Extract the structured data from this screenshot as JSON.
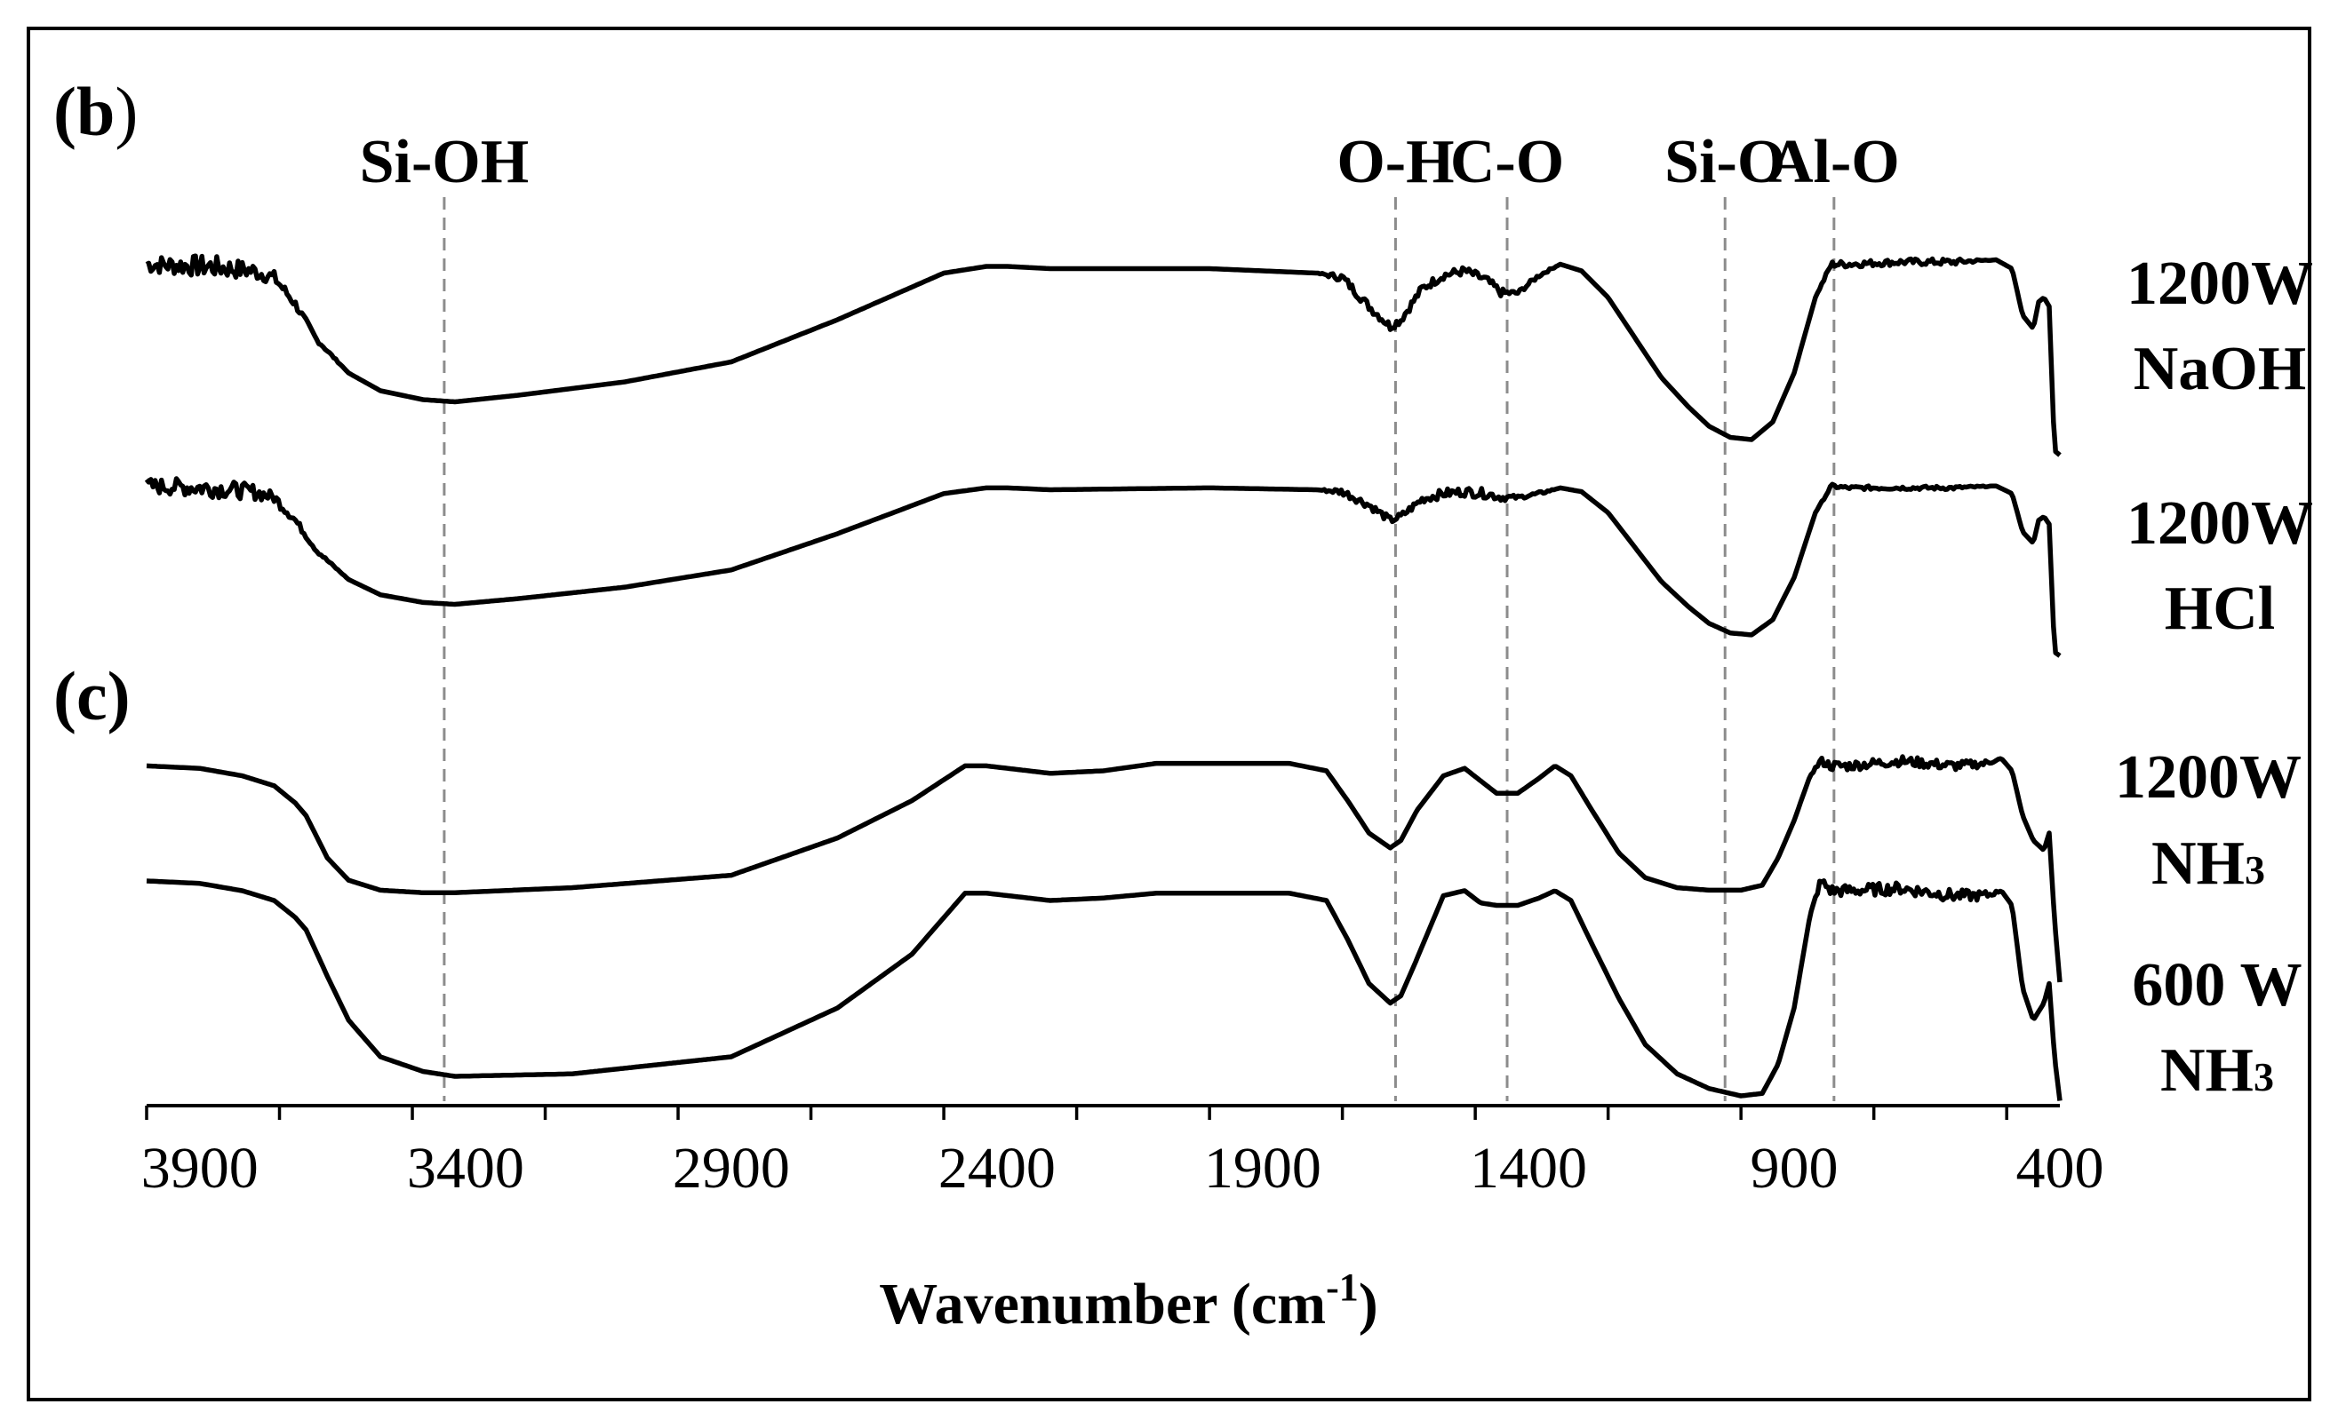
{
  "chart_data": {
    "type": "line",
    "title": "",
    "xlabel": "Wavenumber (cm-1)",
    "xlabel_main": "Wavenumber (cm",
    "xlabel_sup": "-1",
    "xlabel_close": ")",
    "ylabel": "",
    "xlim": [
      4000,
      400
    ],
    "x_reversed": true,
    "x_ticks": [
      3900,
      3400,
      2900,
      2400,
      1900,
      1400,
      900,
      400
    ],
    "x_tick_labels": [
      "3900",
      "3400",
      "2900",
      "2400",
      "1900",
      "1400",
      "900",
      "400"
    ],
    "panels": [
      {
        "label": "(b)",
        "label_main": "(b",
        "label_close": ")"
      },
      {
        "label": "(c)"
      }
    ],
    "bands": [
      {
        "label": "Si-OH",
        "x": 3440
      },
      {
        "label": "O-H",
        "x": 1650
      },
      {
        "label": "C-O",
        "x": 1440
      },
      {
        "label": "Si-O",
        "x": 1030
      },
      {
        "label": "Al-O",
        "x": 825
      }
    ],
    "series": [
      {
        "name": "1200W NaOH",
        "label_lines": [
          "1200W",
          "NaOH"
        ],
        "x": [
          4000,
          3880,
          3800,
          3760,
          3720,
          3680,
          3620,
          3560,
          3480,
          3420,
          3300,
          3100,
          2900,
          2700,
          2500,
          2420,
          2380,
          2300,
          2000,
          1800,
          1750,
          1700,
          1660,
          1640,
          1600,
          1560,
          1520,
          1480,
          1450,
          1420,
          1380,
          1340,
          1300,
          1250,
          1200,
          1150,
          1100,
          1060,
          1020,
          980,
          940,
          900,
          860,
          830,
          800,
          700,
          600,
          520,
          490,
          470,
          450,
          440,
          430,
          420,
          410,
          400
        ],
        "y": [
          0.89,
          0.88,
          0.86,
          0.83,
          0.71,
          0.55,
          0.4,
          0.32,
          0.28,
          0.27,
          0.3,
          0.36,
          0.45,
          0.64,
          0.85,
          0.88,
          0.88,
          0.87,
          0.87,
          0.85,
          0.83,
          0.7,
          0.61,
          0.64,
          0.78,
          0.84,
          0.86,
          0.82,
          0.76,
          0.76,
          0.84,
          0.89,
          0.86,
          0.74,
          0.56,
          0.38,
          0.25,
          0.16,
          0.11,
          0.1,
          0.18,
          0.4,
          0.74,
          0.89,
          0.89,
          0.9,
          0.9,
          0.91,
          0.87,
          0.66,
          0.6,
          0.72,
          0.74,
          0.7,
          0.05,
          0.03
        ],
        "noise": [
          0.04,
          0.05,
          0.04,
          0.03,
          0.02,
          0.01,
          0.0,
          0.0,
          0.0,
          0.0,
          0.0,
          0.0,
          0.0,
          0.0,
          0.0,
          0.0,
          0.0,
          0.0,
          0.0,
          0.0,
          0.02,
          0.02,
          0.02,
          0.02,
          0.02,
          0.02,
          0.02,
          0.02,
          0.02,
          0.01,
          0.01,
          0.0,
          0.0,
          0.0,
          0.0,
          0.0,
          0.0,
          0.0,
          0.0,
          0.0,
          0.0,
          0.0,
          0.0,
          0.015,
          0.015,
          0.015,
          0.015,
          0.0,
          0.0,
          0.0,
          0.0,
          0.0,
          0.0,
          0.0,
          0.0,
          0.0
        ]
      },
      {
        "name": "1200W HCl",
        "label_lines": [
          "1200W",
          "HCl"
        ],
        "x": [
          4000,
          3880,
          3800,
          3760,
          3720,
          3680,
          3620,
          3560,
          3480,
          3420,
          3300,
          3100,
          2900,
          2700,
          2500,
          2420,
          2380,
          2300,
          2000,
          1800,
          1750,
          1700,
          1660,
          1640,
          1600,
          1560,
          1520,
          1480,
          1450,
          1420,
          1380,
          1340,
          1300,
          1250,
          1200,
          1150,
          1100,
          1060,
          1020,
          980,
          940,
          900,
          860,
          830,
          800,
          700,
          600,
          520,
          490,
          470,
          450,
          440,
          430,
          420,
          410,
          400
        ],
        "y": [
          0.92,
          0.91,
          0.89,
          0.86,
          0.74,
          0.58,
          0.43,
          0.35,
          0.31,
          0.3,
          0.33,
          0.39,
          0.48,
          0.67,
          0.88,
          0.91,
          0.91,
          0.9,
          0.91,
          0.9,
          0.89,
          0.82,
          0.74,
          0.76,
          0.85,
          0.88,
          0.89,
          0.88,
          0.86,
          0.86,
          0.88,
          0.91,
          0.89,
          0.78,
          0.6,
          0.42,
          0.29,
          0.2,
          0.15,
          0.14,
          0.22,
          0.44,
          0.78,
          0.92,
          0.91,
          0.91,
          0.91,
          0.92,
          0.88,
          0.68,
          0.62,
          0.74,
          0.76,
          0.72,
          0.05,
          0.03
        ],
        "noise": [
          0.04,
          0.05,
          0.04,
          0.03,
          0.02,
          0.01,
          0.0,
          0.0,
          0.0,
          0.0,
          0.0,
          0.0,
          0.0,
          0.0,
          0.0,
          0.0,
          0.0,
          0.0,
          0.0,
          0.0,
          0.02,
          0.02,
          0.02,
          0.02,
          0.02,
          0.025,
          0.025,
          0.025,
          0.02,
          0.01,
          0.01,
          0.0,
          0.0,
          0.0,
          0.0,
          0.0,
          0.0,
          0.0,
          0.0,
          0.0,
          0.0,
          0.0,
          0.0,
          0.01,
          0.01,
          0.01,
          0.01,
          0.0,
          0.0,
          0.0,
          0.0,
          0.0,
          0.0,
          0.0,
          0.0,
          0.0
        ]
      },
      {
        "name": "1200W NH3",
        "label_lines": [
          "1200W",
          "NH",
          "3"
        ],
        "x": [
          4000,
          3900,
          3820,
          3760,
          3720,
          3700,
          3660,
          3620,
          3560,
          3480,
          3420,
          3200,
          2900,
          2700,
          2560,
          2460,
          2420,
          2300,
          2200,
          2100,
          2000,
          1850,
          1780,
          1740,
          1700,
          1660,
          1640,
          1610,
          1560,
          1520,
          1490,
          1460,
          1420,
          1380,
          1350,
          1320,
          1280,
          1230,
          1180,
          1120,
          1060,
          1000,
          960,
          930,
          900,
          870,
          850,
          830,
          800,
          700,
          600,
          540,
          510,
          490,
          470,
          450,
          430,
          420,
          410,
          400
        ],
        "y": [
          0.92,
          0.91,
          0.88,
          0.84,
          0.77,
          0.72,
          0.55,
          0.46,
          0.42,
          0.41,
          0.41,
          0.43,
          0.48,
          0.63,
          0.78,
          0.92,
          0.92,
          0.89,
          0.9,
          0.93,
          0.93,
          0.93,
          0.9,
          0.78,
          0.65,
          0.59,
          0.62,
          0.74,
          0.88,
          0.91,
          0.86,
          0.81,
          0.81,
          0.87,
          0.92,
          0.88,
          0.74,
          0.57,
          0.47,
          0.43,
          0.42,
          0.42,
          0.44,
          0.55,
          0.7,
          0.88,
          0.94,
          0.92,
          0.92,
          0.94,
          0.92,
          0.93,
          0.95,
          0.9,
          0.72,
          0.62,
          0.58,
          0.65,
          0.3,
          0.05
        ],
        "noise": [
          0.0,
          0.0,
          0.0,
          0.0,
          0.0,
          0.0,
          0.0,
          0.0,
          0.0,
          0.0,
          0.0,
          0.0,
          0.0,
          0.0,
          0.0,
          0.0,
          0.0,
          0.0,
          0.0,
          0.0,
          0.0,
          0.0,
          0.0,
          0.0,
          0.0,
          0.0,
          0.0,
          0.0,
          0.0,
          0.0,
          0.0,
          0.0,
          0.0,
          0.0,
          0.0,
          0.0,
          0.0,
          0.0,
          0.0,
          0.0,
          0.0,
          0.0,
          0.0,
          0.0,
          0.0,
          0.0,
          0.015,
          0.02,
          0.02,
          0.02,
          0.02,
          0.015,
          0.0,
          0.0,
          0.0,
          0.0,
          0.0,
          0.0,
          0.0,
          0.0
        ]
      },
      {
        "name": "600 W NH3",
        "label_lines": [
          "600 W",
          "NH",
          "3"
        ],
        "x": [
          4000,
          3900,
          3820,
          3760,
          3720,
          3700,
          3660,
          3620,
          3560,
          3480,
          3420,
          3200,
          2900,
          2700,
          2560,
          2460,
          2420,
          2300,
          2200,
          2100,
          2000,
          1850,
          1780,
          1740,
          1700,
          1660,
          1640,
          1610,
          1560,
          1520,
          1490,
          1460,
          1420,
          1380,
          1350,
          1320,
          1280,
          1230,
          1180,
          1120,
          1060,
          1000,
          960,
          930,
          900,
          870,
          850,
          830,
          800,
          700,
          600,
          540,
          510,
          490,
          470,
          450,
          430,
          420,
          410,
          400
        ],
        "y": [
          0.92,
          0.91,
          0.88,
          0.84,
          0.77,
          0.72,
          0.53,
          0.35,
          0.2,
          0.14,
          0.12,
          0.13,
          0.2,
          0.4,
          0.62,
          0.87,
          0.87,
          0.84,
          0.85,
          0.87,
          0.87,
          0.87,
          0.84,
          0.68,
          0.5,
          0.42,
          0.45,
          0.6,
          0.86,
          0.88,
          0.83,
          0.82,
          0.82,
          0.85,
          0.88,
          0.84,
          0.66,
          0.44,
          0.25,
          0.13,
          0.07,
          0.04,
          0.05,
          0.17,
          0.4,
          0.78,
          0.92,
          0.88,
          0.88,
          0.89,
          0.86,
          0.86,
          0.88,
          0.82,
          0.48,
          0.35,
          0.42,
          0.5,
          0.2,
          0.02
        ],
        "noise": [
          0.0,
          0.0,
          0.0,
          0.0,
          0.0,
          0.0,
          0.0,
          0.0,
          0.0,
          0.0,
          0.0,
          0.0,
          0.0,
          0.0,
          0.0,
          0.0,
          0.0,
          0.0,
          0.0,
          0.0,
          0.0,
          0.0,
          0.0,
          0.0,
          0.0,
          0.0,
          0.0,
          0.0,
          0.0,
          0.0,
          0.0,
          0.0,
          0.0,
          0.0,
          0.0,
          0.0,
          0.0,
          0.0,
          0.0,
          0.0,
          0.0,
          0.0,
          0.0,
          0.0,
          0.0,
          0.0,
          0.02,
          0.025,
          0.025,
          0.025,
          0.025,
          0.02,
          0.0,
          0.0,
          0.0,
          0.0,
          0.0,
          0.0,
          0.0,
          0.0
        ]
      }
    ],
    "grid": false
  },
  "colors": {
    "line": "#000000",
    "guide": "#8c8c8c"
  }
}
